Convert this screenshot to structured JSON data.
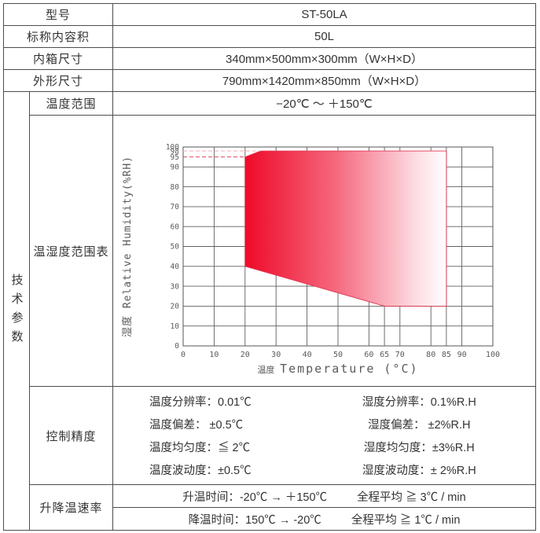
{
  "table": {
    "rows": [
      {
        "label": "型号",
        "value": "ST-50LA"
      },
      {
        "label": "标称内容积",
        "value": "50L"
      },
      {
        "label": "内箱尺寸",
        "value": "340mm×500mm×300mm（W×H×D）"
      },
      {
        "label": "外形尺寸",
        "value": "790mm×1420mm×850mm（W×H×D）"
      }
    ],
    "tech_group_label": "技术参数",
    "temp_range": {
      "label": "温度范围",
      "value": "−20℃ ～ ＋150℃"
    },
    "chart_row_label": "温湿度范围表",
    "control": {
      "label": "控制精度",
      "lines": [
        {
          "left": "温度分辨率：0.01℃",
          "right": "湿度分辨率：0.1%R.H"
        },
        {
          "left": "温度偏差： ±0.5℃",
          "right": "湿度偏差： ±2%R.H"
        },
        {
          "left": "温度均匀度：≦ 2℃",
          "right": "湿度均匀度：±3%R.H"
        },
        {
          "left": "温度波动度：±0.5℃",
          "right": "湿度波动度：± 2%R.H"
        }
      ]
    },
    "ramp": {
      "label": "升降温速率",
      "rows": [
        {
          "left": "升温时间：-20℃ → ＋150℃",
          "right": "全程平均 ≧ 3℃ / min"
        },
        {
          "left": "降温时间：150℃ → -20℃",
          "right": "全程平均 ≧ 1℃ / min"
        }
      ]
    }
  },
  "chart_data": {
    "type": "area",
    "title": "温湿度范围表 (temperature-humidity operating range)",
    "xlabel_cn": "温度",
    "xlabel_en": "Temperature (°C)",
    "ylabel_cn": "湿度",
    "ylabel_en": "Relative Humidity(%RH)",
    "xlim": [
      0,
      100
    ],
    "ylim": [
      0,
      100
    ],
    "x_ticks": [
      0,
      10,
      20,
      30,
      40,
      50,
      60,
      65,
      70,
      80,
      85,
      90,
      100
    ],
    "y_ticks": [
      0,
      10,
      20,
      30,
      40,
      50,
      60,
      70,
      80,
      90,
      95,
      98,
      100
    ],
    "grid": true,
    "region_polygon": [
      [
        20,
        40
      ],
      [
        20,
        95
      ],
      [
        25,
        98
      ],
      [
        85,
        98
      ],
      [
        85,
        20
      ],
      [
        65,
        20
      ]
    ],
    "region_stroke": "#e23350",
    "dashed_guides": [
      {
        "y": 95,
        "x_from": 0,
        "x_to": 20,
        "color": "#dd4a5c"
      },
      {
        "y": 98,
        "x_from": 0,
        "x_to": 25,
        "color": "#f3a8b5"
      }
    ],
    "gradient": {
      "stops": [
        {
          "offset": 0,
          "color": "#ee0a28"
        },
        {
          "offset": 0.45,
          "color": "#f5687e"
        },
        {
          "offset": 0.85,
          "color": "#fcdde3"
        },
        {
          "offset": 1,
          "color": "#ffffff"
        }
      ]
    },
    "grid_color": "#5f5f5f",
    "label_color": "#5a5a5a"
  }
}
